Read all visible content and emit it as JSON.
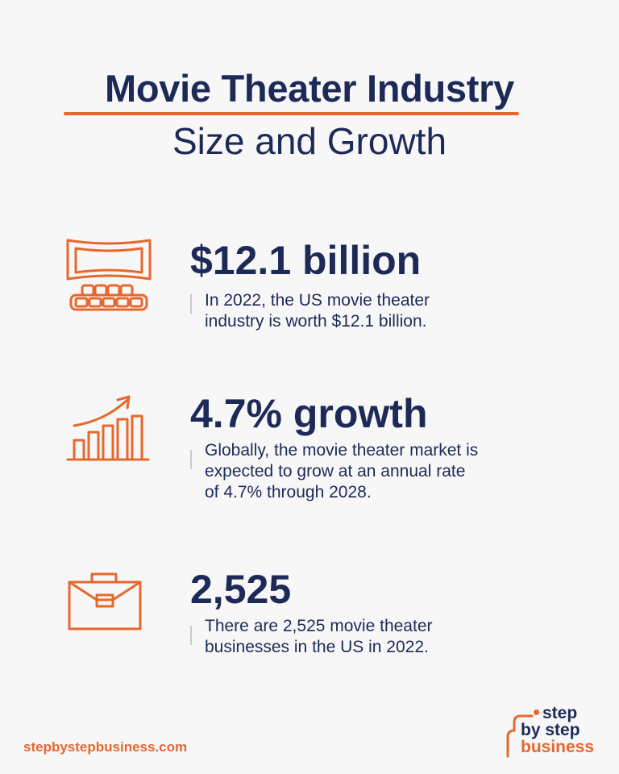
{
  "header": {
    "title_line1": "Movie Theater Industry",
    "title_line2": "Size and Growth"
  },
  "colors": {
    "accent": "#e8672c",
    "navy": "#1d2a57",
    "background": "#f7f7f8"
  },
  "stats": [
    {
      "icon": "movie-theater-icon",
      "value": "$12.1 billion",
      "description": "In 2022, the US movie theater\nindustry is worth $12.1 billion."
    },
    {
      "icon": "growth-chart-icon",
      "value": "4.7% growth",
      "description": "Globally, the movie theater market is\nexpected to grow at an annual rate\nof 4.7% through 2028."
    },
    {
      "icon": "briefcase-icon",
      "value": "2,525",
      "description": "There are 2,525 movie theater\nbusinesses in the US in 2022."
    }
  ],
  "footer": {
    "website": "stepbystepbusiness.com",
    "logo_line1": "step",
    "logo_line2": "by step",
    "logo_line3": "business"
  }
}
